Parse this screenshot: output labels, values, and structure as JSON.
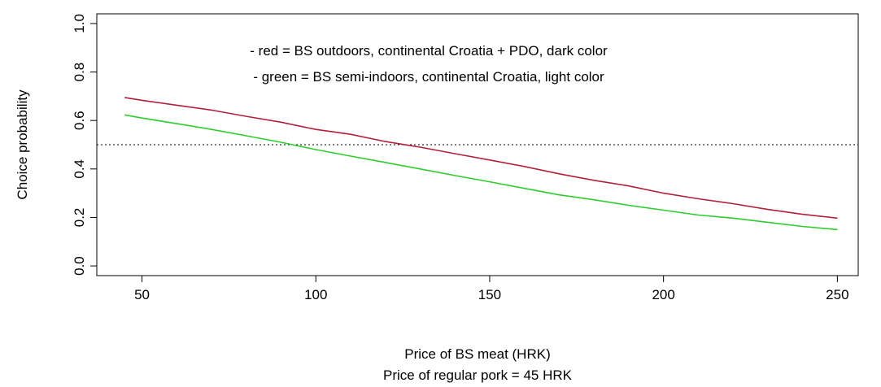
{
  "chart_data": {
    "type": "line",
    "title": "",
    "xlabel": "Price of BS meat (HRK)",
    "xlabel_line2": "Price of regular pork = 45 HRK",
    "ylabel": "Choice probability",
    "xlim": [
      37,
      256
    ],
    "ylim": [
      -0.04,
      1.04
    ],
    "x_ticks": [
      50,
      100,
      150,
      200,
      250
    ],
    "y_ticks": [
      0.0,
      0.2,
      0.4,
      0.6,
      0.8,
      1.0
    ],
    "x_tick_labels": [
      "50",
      "100",
      "150",
      "200",
      "250"
    ],
    "y_tick_labels": [
      "0.0",
      "0.2",
      "0.4",
      "0.6",
      "0.8",
      "1.0"
    ],
    "reference_line": {
      "y": 0.5,
      "style": "dotted"
    },
    "legend": [
      "- red = BS outdoors, continental Croatia + PDO, dark color",
      "- green = BS semi-indoors, continental Croatia, light color"
    ],
    "series": [
      {
        "color": "#b0213a",
        "x": [
          45,
          50,
          60,
          70,
          80,
          90,
          100,
          110,
          120,
          130,
          140,
          150,
          160,
          170,
          180,
          190,
          200,
          210,
          220,
          230,
          240,
          250
        ],
        "y": [
          0.695,
          0.683,
          0.663,
          0.643,
          0.617,
          0.593,
          0.563,
          0.543,
          0.513,
          0.49,
          0.463,
          0.437,
          0.41,
          0.38,
          0.353,
          0.33,
          0.3,
          0.277,
          0.257,
          0.233,
          0.213,
          0.197
        ]
      },
      {
        "color": "#2ecc2e",
        "x": [
          45,
          50,
          60,
          70,
          80,
          90,
          100,
          110,
          120,
          130,
          140,
          150,
          160,
          170,
          180,
          190,
          200,
          210,
          220,
          230,
          240,
          250
        ],
        "y": [
          0.623,
          0.61,
          0.587,
          0.563,
          0.537,
          0.51,
          0.48,
          0.453,
          0.427,
          0.4,
          0.373,
          0.347,
          0.32,
          0.293,
          0.273,
          0.25,
          0.23,
          0.21,
          0.197,
          0.18,
          0.163,
          0.15
        ]
      }
    ]
  }
}
